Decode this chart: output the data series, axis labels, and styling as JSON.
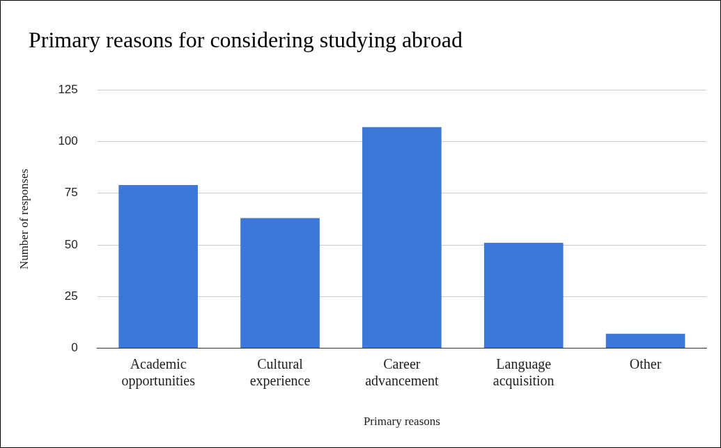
{
  "chart_data": {
    "type": "bar",
    "title": "Primary reasons for considering studying abroad",
    "xlabel": "Primary reasons",
    "ylabel": "Number of responses",
    "categories": [
      "Academic opportunities",
      "Cultural experience",
      "Career advancement",
      "Language acquisition",
      "Other"
    ],
    "values": [
      79,
      63,
      107,
      51,
      7
    ],
    "color": "#3c78d8",
    "ylim": [
      0,
      125
    ],
    "yticks": [
      0,
      25,
      50,
      75,
      100,
      125
    ],
    "grid": "y",
    "legend": false
  }
}
